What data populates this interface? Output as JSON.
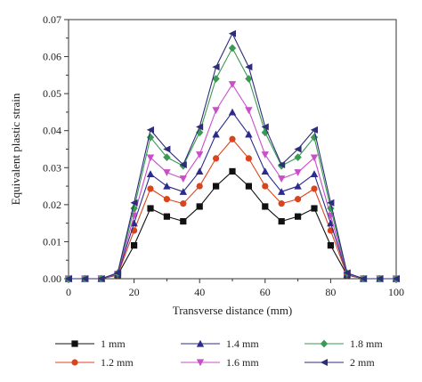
{
  "chart_data": {
    "type": "line",
    "xlabel": "Transverse distance (mm)",
    "ylabel": "Equivalent plastic strain",
    "xlim": [
      0,
      100
    ],
    "ylim": [
      0,
      0.07
    ],
    "xticks": [
      "0",
      "20",
      "40",
      "60",
      "80",
      "100"
    ],
    "yticks": [
      "0.00",
      "0.01",
      "0.02",
      "0.03",
      "0.04",
      "0.05",
      "0.06",
      "0.07"
    ],
    "x": [
      0,
      5,
      10,
      15,
      20,
      25,
      30,
      35,
      40,
      45,
      50,
      55,
      60,
      65,
      70,
      75,
      80,
      85,
      90,
      95,
      100
    ],
    "grid": false,
    "legend_position": "bottom",
    "series": [
      {
        "name": "1 mm",
        "color": "#111111",
        "marker": "square",
        "values": [
          0,
          0,
          0,
          0.001,
          0.009,
          0.019,
          0.0168,
          0.0155,
          0.0195,
          0.025,
          0.029,
          0.025,
          0.0195,
          0.0155,
          0.0168,
          0.019,
          0.009,
          0.001,
          0,
          0,
          0
        ]
      },
      {
        "name": "1.2 mm",
        "color": "#d9441c",
        "marker": "circle",
        "values": [
          0,
          0,
          0,
          0.001,
          0.013,
          0.0243,
          0.0215,
          0.0203,
          0.025,
          0.0325,
          0.0377,
          0.0325,
          0.025,
          0.0203,
          0.0215,
          0.0243,
          0.013,
          0.001,
          0,
          0,
          0
        ]
      },
      {
        "name": "1.4 mm",
        "color": "#2b2b8e",
        "marker": "triangle-up",
        "values": [
          0,
          0,
          0,
          0.0012,
          0.015,
          0.0283,
          0.025,
          0.0235,
          0.029,
          0.039,
          0.045,
          0.039,
          0.029,
          0.0235,
          0.025,
          0.0283,
          0.015,
          0.0012,
          0,
          0,
          0
        ]
      },
      {
        "name": "1.6 mm",
        "color": "#c94fc9",
        "marker": "triangle-down",
        "values": [
          0,
          0,
          0,
          0.0013,
          0.017,
          0.0327,
          0.0287,
          0.027,
          0.0335,
          0.0455,
          0.0525,
          0.0455,
          0.0335,
          0.027,
          0.0287,
          0.0327,
          0.017,
          0.0013,
          0,
          0,
          0
        ]
      },
      {
        "name": "1.8 mm",
        "color": "#3b9a52",
        "marker": "diamond",
        "values": [
          0,
          0,
          0,
          0.0015,
          0.019,
          0.0382,
          0.0328,
          0.0305,
          0.0395,
          0.054,
          0.0623,
          0.054,
          0.0395,
          0.0305,
          0.0328,
          0.0382,
          0.019,
          0.0015,
          0,
          0,
          0
        ]
      },
      {
        "name": "2 mm",
        "color": "#2d2d7a",
        "marker": "triangle-left",
        "values": [
          0,
          0,
          0,
          0.0016,
          0.0205,
          0.0402,
          0.035,
          0.0308,
          0.041,
          0.0572,
          0.0662,
          0.0572,
          0.041,
          0.0308,
          0.035,
          0.0402,
          0.0205,
          0.0016,
          0,
          0,
          0
        ]
      }
    ]
  }
}
